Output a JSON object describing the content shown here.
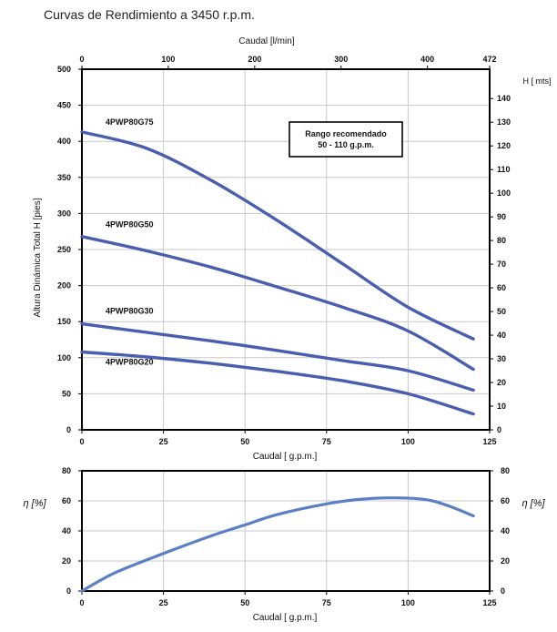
{
  "page_title": "Curvas de Rendimiento a 3450 r.p.m.",
  "chart_data": [
    {
      "type": "line",
      "title": "",
      "xlabel": "Caudal [ g.p.m.]",
      "x_top_label": "Caudal [l/min]",
      "ylabel": "Altura Dinámica Total H [pies]",
      "y_right_label": "H [ mts]",
      "xlim": [
        0,
        125
      ],
      "ylim": [
        0,
        500
      ],
      "y_right_lim": [
        0,
        152.4
      ],
      "grid": true,
      "x_ticks": [
        0,
        25,
        50,
        75,
        100,
        125
      ],
      "y_ticks": [
        0,
        50,
        100,
        150,
        200,
        250,
        300,
        350,
        400,
        450,
        500
      ],
      "x_top_ticks": [
        0,
        100,
        200,
        300,
        400,
        472
      ],
      "y_right_ticks": [
        0,
        10,
        20,
        30,
        40,
        50,
        60,
        70,
        80,
        90,
        100,
        110,
        120,
        130,
        140
      ],
      "annotation": [
        "Rango recomendado",
        "50 - 110 g.p.m."
      ],
      "line_color": "#4a5eb0",
      "series": [
        {
          "name": "4PWP80G75",
          "x": [
            0,
            20,
            40,
            60,
            80,
            100,
            120
          ],
          "y": [
            413,
            390,
            345,
            290,
            230,
            170,
            126
          ]
        },
        {
          "name": "4PWP80G50",
          "x": [
            0,
            20,
            40,
            60,
            80,
            100,
            120
          ],
          "y": [
            268,
            248,
            225,
            198,
            170,
            137,
            84
          ]
        },
        {
          "name": "4PWP80G30",
          "x": [
            0,
            20,
            40,
            60,
            80,
            100,
            120
          ],
          "y": [
            147,
            135,
            123,
            110,
            96,
            82,
            55
          ]
        },
        {
          "name": "4PWP80G20",
          "x": [
            0,
            20,
            40,
            60,
            80,
            100,
            120
          ],
          "y": [
            108,
            101,
            92,
            81,
            68,
            50,
            22
          ]
        }
      ]
    },
    {
      "type": "line",
      "title": "",
      "xlabel": "Caudal [ g.p.m.]",
      "ylabel": "η [%]",
      "y_right_label": "η [%]",
      "xlim": [
        0,
        125
      ],
      "ylim": [
        0,
        80
      ],
      "grid": true,
      "x_ticks": [
        0,
        25,
        50,
        75,
        100,
        125
      ],
      "y_ticks": [
        0,
        20,
        40,
        60,
        80
      ],
      "line_color": "#5b7fc4",
      "series": [
        {
          "x": [
            0,
            10,
            25,
            40,
            50,
            60,
            75,
            85,
            95,
            105,
            112,
            120
          ],
          "y": [
            0,
            12,
            25,
            37,
            44,
            51,
            58,
            61,
            62,
            61,
            57,
            50
          ]
        }
      ]
    }
  ]
}
